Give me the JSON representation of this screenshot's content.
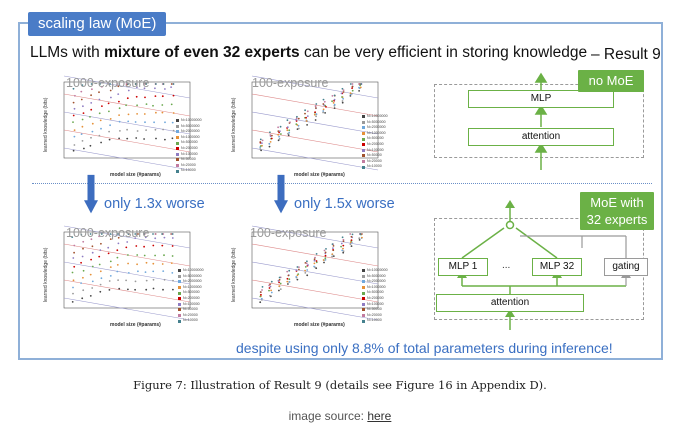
{
  "tag": "scaling law (MoE)",
  "headline": {
    "pre": "LLMs with ",
    "bold": "mixture of even 32 experts",
    "post": " can be very efficient in storing knowledge"
  },
  "result": "– Result 9",
  "plots": {
    "top_left_title": "1000-exposure",
    "top_right_title": "100-exposure",
    "bottom_left_title": "1000-exposure",
    "bottom_right_title": "100-exposure",
    "ylabel": "learned knowledge (bits)",
    "xlabel": "model size (#params)",
    "legend": [
      "N=10000000",
      "N=5000000",
      "N=2000000",
      "N=1000000",
      "N=500000",
      "N=200000",
      "N=100000",
      "N=50000",
      "N=20000",
      "N=10000"
    ],
    "legend_colors": [
      "#444444",
      "#9a9a9a",
      "#6fa8dc",
      "#e69138",
      "#6aa84f",
      "#cc0000",
      "#8e7cc3",
      "#a0522d",
      "#c27ba0",
      "#45818e"
    ]
  },
  "comparisons": {
    "left": "only 1.3x worse",
    "right": "only 1.5x worse"
  },
  "arch_top": {
    "badge": "no MoE",
    "mlp": "MLP",
    "attention": "attention"
  },
  "arch_bottom": {
    "badge_line1": "MoE with",
    "badge_line2": "32 experts",
    "mlp1": "MLP 1",
    "dots": "...",
    "mlp32": "MLP 32",
    "gating": "gating",
    "attention": "attention"
  },
  "despite": "despite using only 8.8% of total parameters during inference!",
  "caption": "Figure 7: Illustration of Result 9 (details see Figure 16 in Appendix D).",
  "source": {
    "prefix": "image source: ",
    "link": "here"
  },
  "colors": {
    "accent_blue": "#4a7cc7",
    "text_blue": "#3a6fc2",
    "green": "#6bb146",
    "panel_border": "#8fb0d8"
  }
}
